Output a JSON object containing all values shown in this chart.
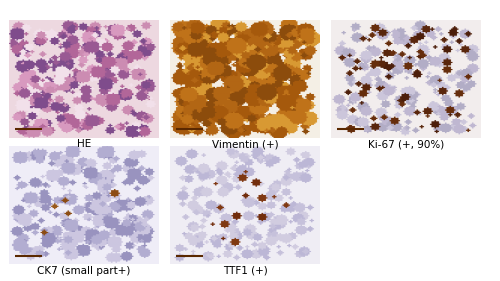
{
  "labels": [
    "HE",
    "Vimentin (+)",
    "Ki-67 (+, 90%)",
    "CK7 (small part+)",
    "TTF1 (+)"
  ],
  "outer_bg": "#ffffff",
  "label_fontsize": 7.5,
  "ruler_color": "#5a2800"
}
